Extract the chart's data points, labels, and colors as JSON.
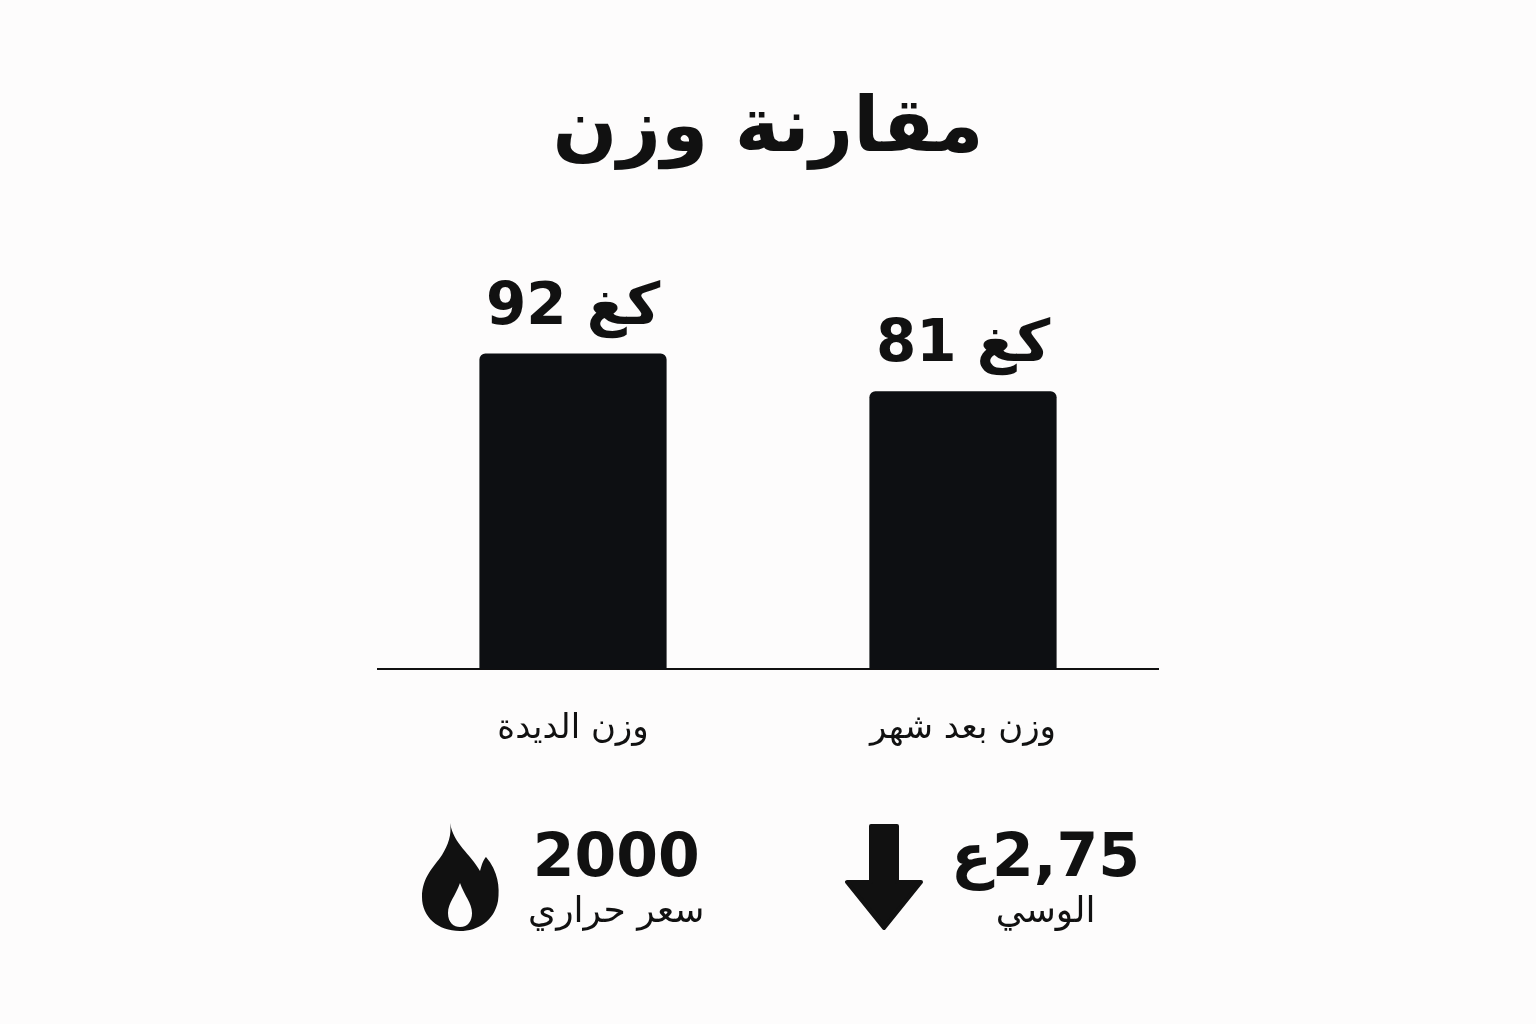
{
  "chart_data": {
    "type": "bar",
    "title": "مقارنة وزن",
    "categories": [
      "وزن الديدة",
      "وزن بعد شهر"
    ],
    "values": [
      92,
      81
    ],
    "color": "#0d0f12",
    "value_labels": [
      "92 كغ",
      "81 كغ"
    ],
    "legend": false,
    "tick_labels": "x",
    "annotations": [
      "2000",
      "سعر حراري",
      "2,75ع",
      "الوسي"
    ]
  }
}
